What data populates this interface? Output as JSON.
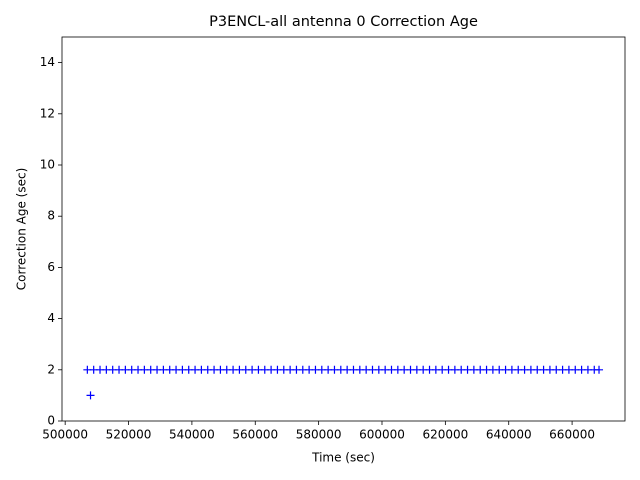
{
  "chart_data": {
    "type": "scatter",
    "title": "P3ENCL-all antenna 0 Correction Age",
    "xlabel": "Time (sec)",
    "ylabel": "Correction Age (sec)",
    "marker": "+",
    "color": "#0000ff",
    "x": [
      507000,
      509000,
      511000,
      513000,
      515000,
      517000,
      519000,
      521000,
      523000,
      525000,
      527000,
      529000,
      531000,
      533000,
      535000,
      537000,
      539000,
      541000,
      543000,
      545000,
      547000,
      549000,
      551000,
      553000,
      555000,
      557000,
      559000,
      561000,
      563000,
      565000,
      567000,
      569000,
      571000,
      573000,
      575000,
      577000,
      579000,
      581000,
      583000,
      585000,
      587000,
      589000,
      591000,
      593000,
      595000,
      597000,
      599000,
      601000,
      603000,
      605000,
      607000,
      609000,
      611000,
      613000,
      615000,
      617000,
      619000,
      621000,
      623000,
      625000,
      627000,
      629000,
      631000,
      633000,
      635000,
      637000,
      639000,
      641000,
      643000,
      645000,
      647000,
      649000,
      651000,
      653000,
      655000,
      657000,
      659000,
      661000,
      663000,
      665000,
      667000,
      668500,
      508000
    ],
    "y": [
      2,
      2,
      2,
      2,
      2,
      2,
      2,
      2,
      2,
      2,
      2,
      2,
      2,
      2,
      2,
      2,
      2,
      2,
      2,
      2,
      2,
      2,
      2,
      2,
      2,
      2,
      2,
      2,
      2,
      2,
      2,
      2,
      2,
      2,
      2,
      2,
      2,
      2,
      2,
      2,
      2,
      2,
      2,
      2,
      2,
      2,
      2,
      2,
      2,
      2,
      2,
      2,
      2,
      2,
      2,
      2,
      2,
      2,
      2,
      2,
      2,
      2,
      2,
      2,
      2,
      2,
      2,
      2,
      2,
      2,
      2,
      2,
      2,
      2,
      2,
      2,
      2,
      2,
      2,
      2,
      2,
      2,
      1
    ],
    "xlim": [
      499000,
      676700
    ],
    "ylim": [
      0,
      15
    ],
    "xticks": [
      500000,
      520000,
      540000,
      560000,
      580000,
      600000,
      620000,
      640000,
      660000
    ],
    "yticks": [
      0,
      2,
      4,
      6,
      8,
      10,
      12,
      14
    ]
  }
}
